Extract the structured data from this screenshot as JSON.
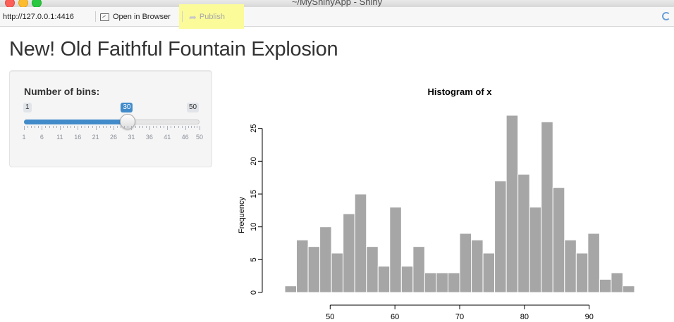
{
  "window": {
    "title": "~/MyShinyApp - Shiny"
  },
  "toolbar": {
    "url": "http://127.0.0.1:4416",
    "open_in_browser_label": "Open in Browser",
    "publish_label": "Publish",
    "icons": [
      "open-in-browser-icon",
      "publish-arrow-icon",
      "refresh-icon"
    ]
  },
  "app": {
    "title": "New! Old Faithful Fountain Explosion"
  },
  "slider": {
    "label": "Number of bins:",
    "min": 1,
    "max": 50,
    "value": 30,
    "min_label": "1",
    "max_label": "50",
    "value_label": "30",
    "grid_labels": [
      "1",
      "6",
      "11",
      "16",
      "21",
      "26",
      "31",
      "36",
      "41",
      "46",
      "50"
    ],
    "accent_color": "#428bca"
  },
  "chart_data": {
    "type": "bar",
    "title": "Histogram of x",
    "xlabel": "",
    "ylabel": "Frequency",
    "bin_width": 1.8,
    "bin_start": 43,
    "values": [
      1,
      8,
      7,
      10,
      6,
      12,
      15,
      7,
      4,
      13,
      4,
      7,
      3,
      3,
      3,
      9,
      8,
      6,
      17,
      27,
      18,
      13,
      26,
      16,
      8,
      6,
      9,
      2,
      3,
      1
    ],
    "xlim": [
      43,
      97
    ],
    "ylim": [
      0,
      27
    ],
    "x_ticks": [
      "50",
      "60",
      "70",
      "80",
      "90"
    ],
    "y_ticks": [
      "0",
      "5",
      "10",
      "15",
      "20",
      "25"
    ],
    "bar_color": "#a6a6a6",
    "grid": false
  }
}
